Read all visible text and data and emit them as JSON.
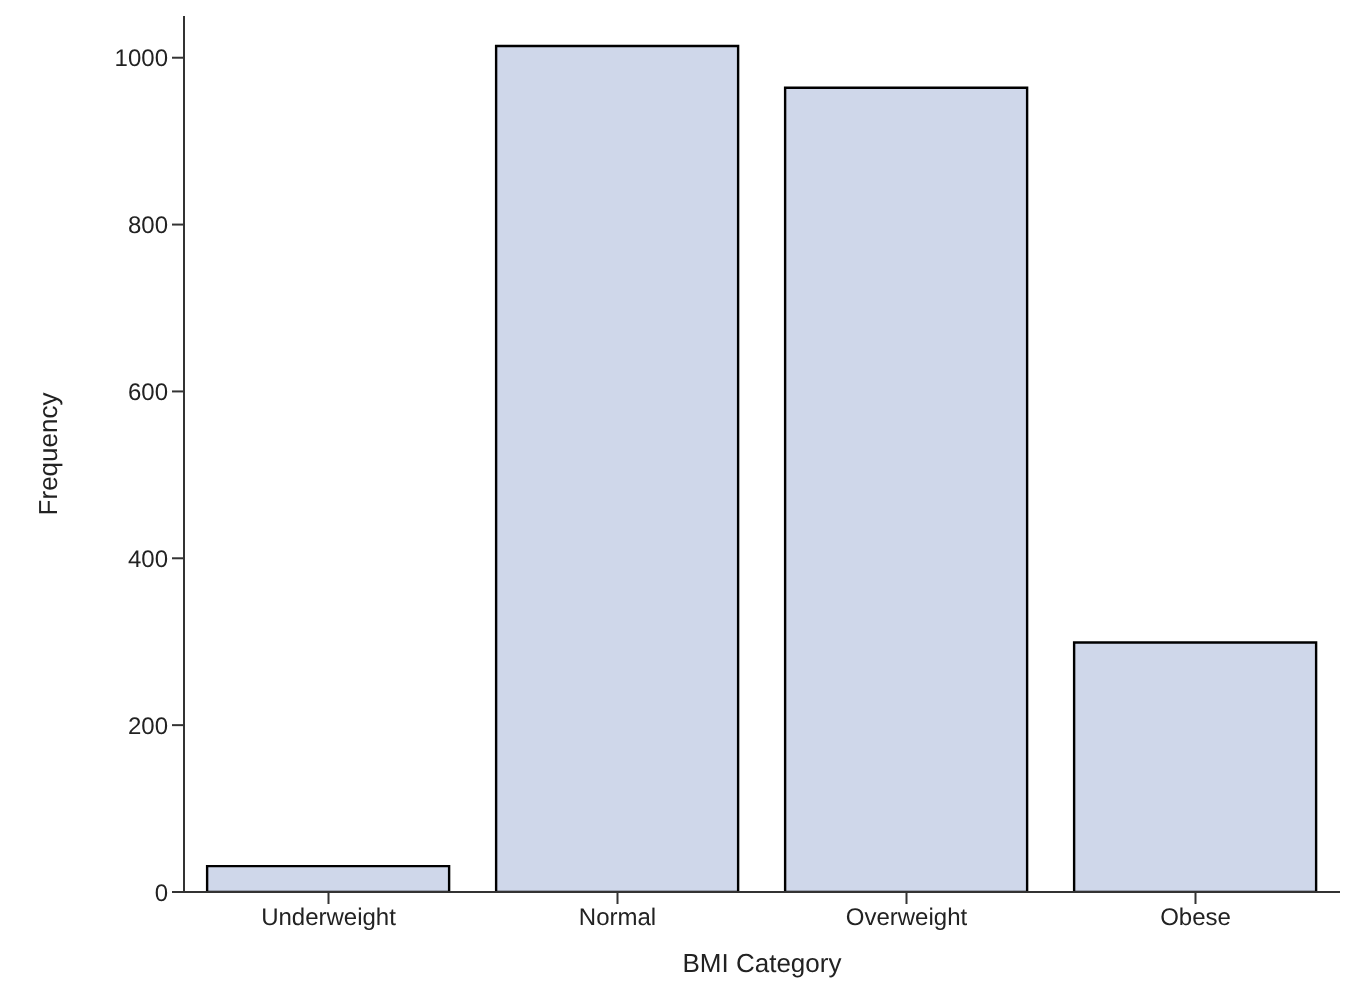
{
  "chart_data": {
    "type": "bar",
    "xlabel": "BMI Category",
    "ylabel": "Frequency",
    "categories": [
      "Underweight",
      "Normal",
      "Overweight",
      "Obese"
    ],
    "values": [
      31,
      1014,
      964,
      299
    ],
    "color": "#cfd7ea",
    "ylim": [
      0,
      1050
    ],
    "yticks": [
      0,
      200,
      400,
      600,
      800,
      1000
    ],
    "grid": false,
    "legend": false
  }
}
